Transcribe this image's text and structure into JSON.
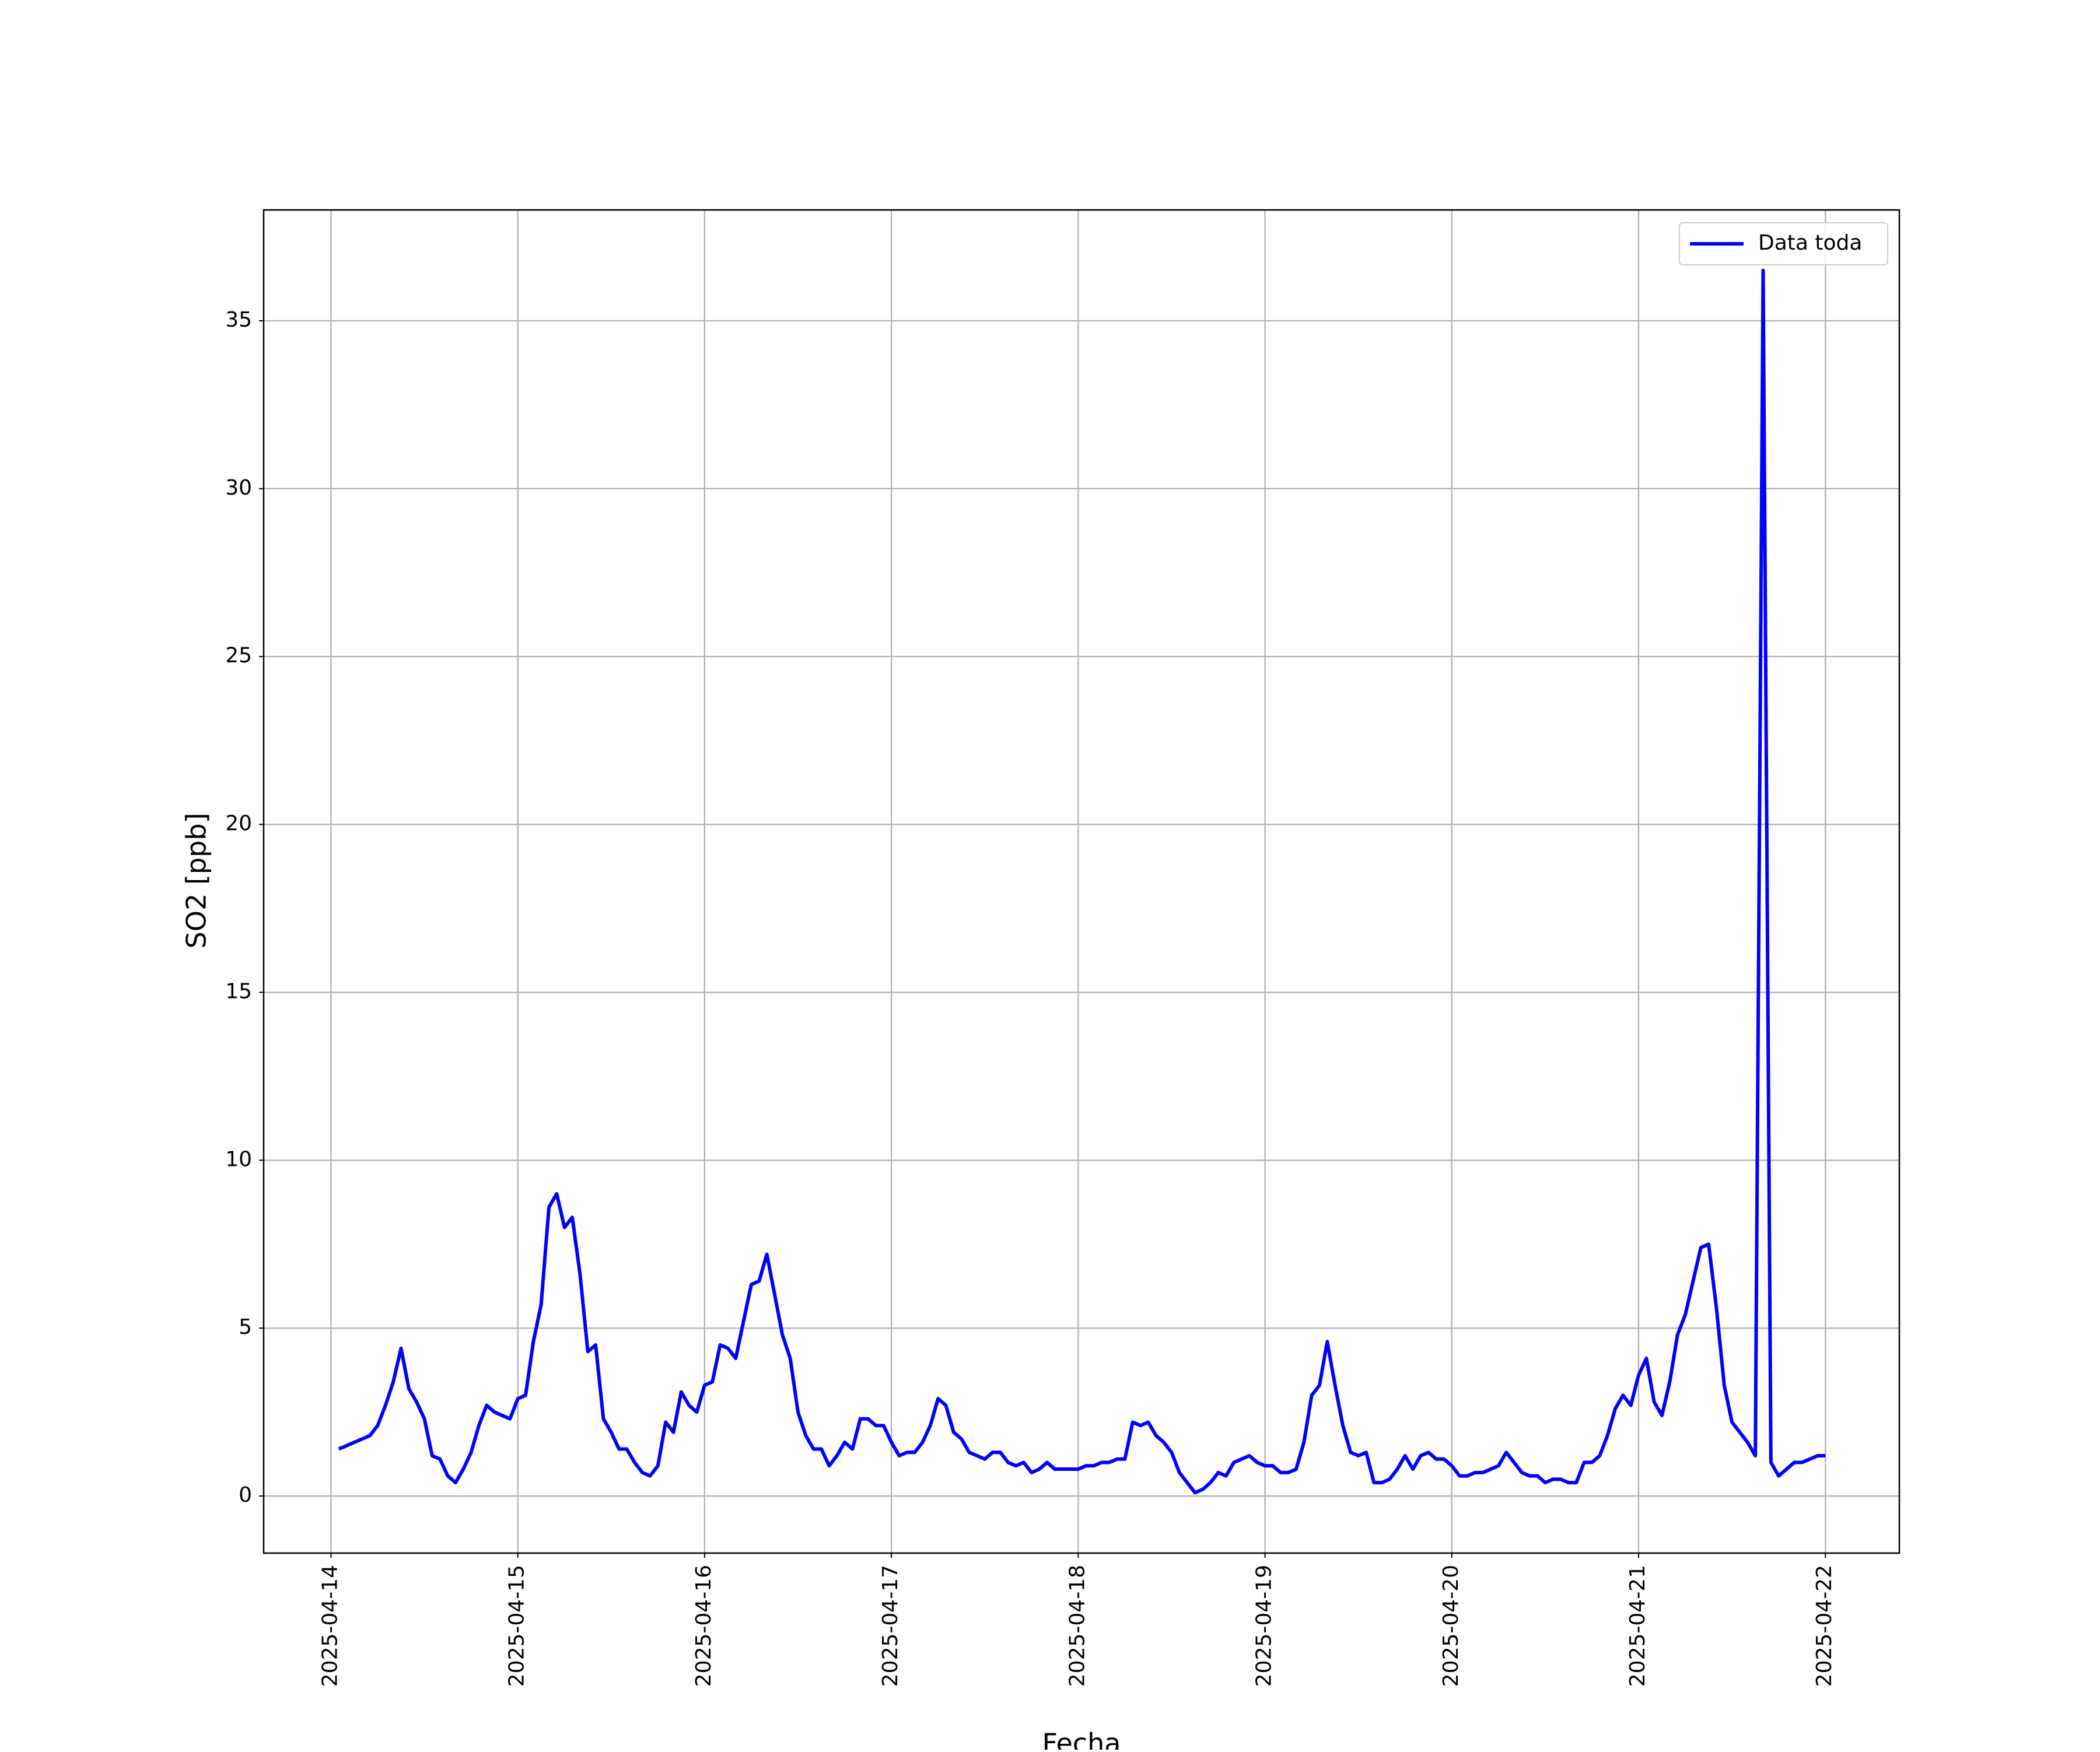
{
  "chart_data": {
    "type": "line",
    "x_label": "Fecha",
    "y_label": "SO2 [ppb]",
    "x": [
      1,
      5,
      6,
      7,
      8,
      9,
      10,
      11,
      12,
      13,
      14,
      15,
      16,
      17,
      18,
      19,
      20,
      21,
      22,
      23,
      24,
      25,
      26,
      27,
      28,
      29,
      30,
      31,
      32,
      33,
      34,
      35,
      36,
      37,
      38,
      39,
      40,
      41,
      42,
      43,
      44,
      45,
      46,
      47,
      48,
      49,
      50,
      51,
      52,
      53,
      54,
      55,
      56,
      57,
      58,
      59,
      60,
      61,
      62,
      63,
      64,
      65,
      66,
      67,
      68,
      69,
      70,
      71,
      72,
      73,
      74,
      75,
      76,
      77,
      78,
      79,
      80,
      81,
      82,
      83,
      84,
      85,
      86,
      87,
      88,
      89,
      90,
      91,
      92,
      93,
      94,
      95,
      96,
      97,
      98,
      99,
      100,
      101,
      102,
      103,
      104,
      105,
      106,
      107,
      108,
      109,
      110,
      111,
      112,
      113,
      114,
      115,
      116,
      117,
      118,
      119,
      120,
      121,
      122,
      123,
      124,
      125,
      126,
      127,
      128,
      129,
      130,
      131,
      132,
      133,
      134,
      135,
      136,
      137,
      138,
      139,
      140,
      141,
      142,
      143,
      144,
      145,
      146,
      147,
      148,
      149,
      150,
      151,
      152,
      153,
      154,
      155,
      156,
      157,
      158,
      159,
      160,
      161,
      162,
      163,
      164,
      165,
      166,
      167,
      168,
      169,
      170,
      171,
      172,
      173,
      174,
      175,
      176,
      177,
      178,
      179,
      180,
      181,
      182,
      183,
      184,
      185,
      186,
      187,
      188,
      189,
      190,
      191,
      192
    ],
    "series": [
      {
        "name": "Data toda",
        "color": "#0000ff",
        "values": [
          1.4,
          1.8,
          2.1,
          2.7,
          3.4,
          4.4,
          3.2,
          2.8,
          2.3,
          1.2,
          1.1,
          0.6,
          0.4,
          0.8,
          1.3,
          2.1,
          2.7,
          2.5,
          2.4,
          2.3,
          2.9,
          3.0,
          4.6,
          5.7,
          8.6,
          9.0,
          8.0,
          8.3,
          6.6,
          4.3,
          4.5,
          2.3,
          1.9,
          1.4,
          1.4,
          1.0,
          0.7,
          0.6,
          0.9,
          2.2,
          1.9,
          3.1,
          2.7,
          2.5,
          3.3,
          3.4,
          4.5,
          4.4,
          4.1,
          5.2,
          6.3,
          6.4,
          7.2,
          6.0,
          4.8,
          4.1,
          2.5,
          1.8,
          1.4,
          1.4,
          0.9,
          1.2,
          1.6,
          1.4,
          2.3,
          2.3,
          2.1,
          2.1,
          1.6,
          1.2,
          1.3,
          1.3,
          1.6,
          2.1,
          2.9,
          2.7,
          1.9,
          1.7,
          1.3,
          1.2,
          1.1,
          1.3,
          1.3,
          1.0,
          0.9,
          1.0,
          0.7,
          0.8,
          1.0,
          0.8,
          0.8,
          0.8,
          0.8,
          0.9,
          0.9,
          1.0,
          1.0,
          1.1,
          1.1,
          2.2,
          2.1,
          2.2,
          1.8,
          1.6,
          1.3,
          0.7,
          0.4,
          0.1,
          0.2,
          0.4,
          0.7,
          0.6,
          1.0,
          1.1,
          1.2,
          1.0,
          0.9,
          0.9,
          0.7,
          0.7,
          0.8,
          1.6,
          3.0,
          3.3,
          4.6,
          3.3,
          2.1,
          1.3,
          1.2,
          1.3,
          0.4,
          0.4,
          0.5,
          0.8,
          1.2,
          0.8,
          1.2,
          1.3,
          1.1,
          1.1,
          0.9,
          0.6,
          0.6,
          0.7,
          0.7,
          0.8,
          0.9,
          1.3,
          1.0,
          0.7,
          0.6,
          0.6,
          0.4,
          0.5,
          0.5,
          0.4,
          0.4,
          1.0,
          1.0,
          1.2,
          1.8,
          2.6,
          3.0,
          2.7,
          3.6,
          4.1,
          2.8,
          2.4,
          3.4,
          4.8,
          5.4,
          6.4,
          7.4,
          7.5,
          5.6,
          3.3,
          2.2,
          1.9,
          1.6,
          1.2,
          36.5,
          1.0,
          0.6,
          0.8,
          1.0,
          1.0,
          1.1,
          1.2,
          1.2
        ]
      }
    ],
    "xlim": [
      -8.65,
      201.5
    ],
    "xticks": [
      {
        "value": 0,
        "label": "2025-04-14"
      },
      {
        "value": 24,
        "label": "2025-04-15"
      },
      {
        "value": 48,
        "label": "2025-04-16"
      },
      {
        "value": 72,
        "label": "2025-04-17"
      },
      {
        "value": 96,
        "label": "2025-04-18"
      },
      {
        "value": 120,
        "label": "2025-04-19"
      },
      {
        "value": 144,
        "label": "2025-04-20"
      },
      {
        "value": 168,
        "label": "2025-04-21"
      },
      {
        "value": 192,
        "label": "2025-04-22"
      }
    ],
    "ylim": [
      -1.7,
      38.3
    ],
    "yticks": [
      0,
      5,
      10,
      15,
      20,
      25,
      30,
      35
    ],
    "grid": true,
    "legend": "upper-right"
  }
}
